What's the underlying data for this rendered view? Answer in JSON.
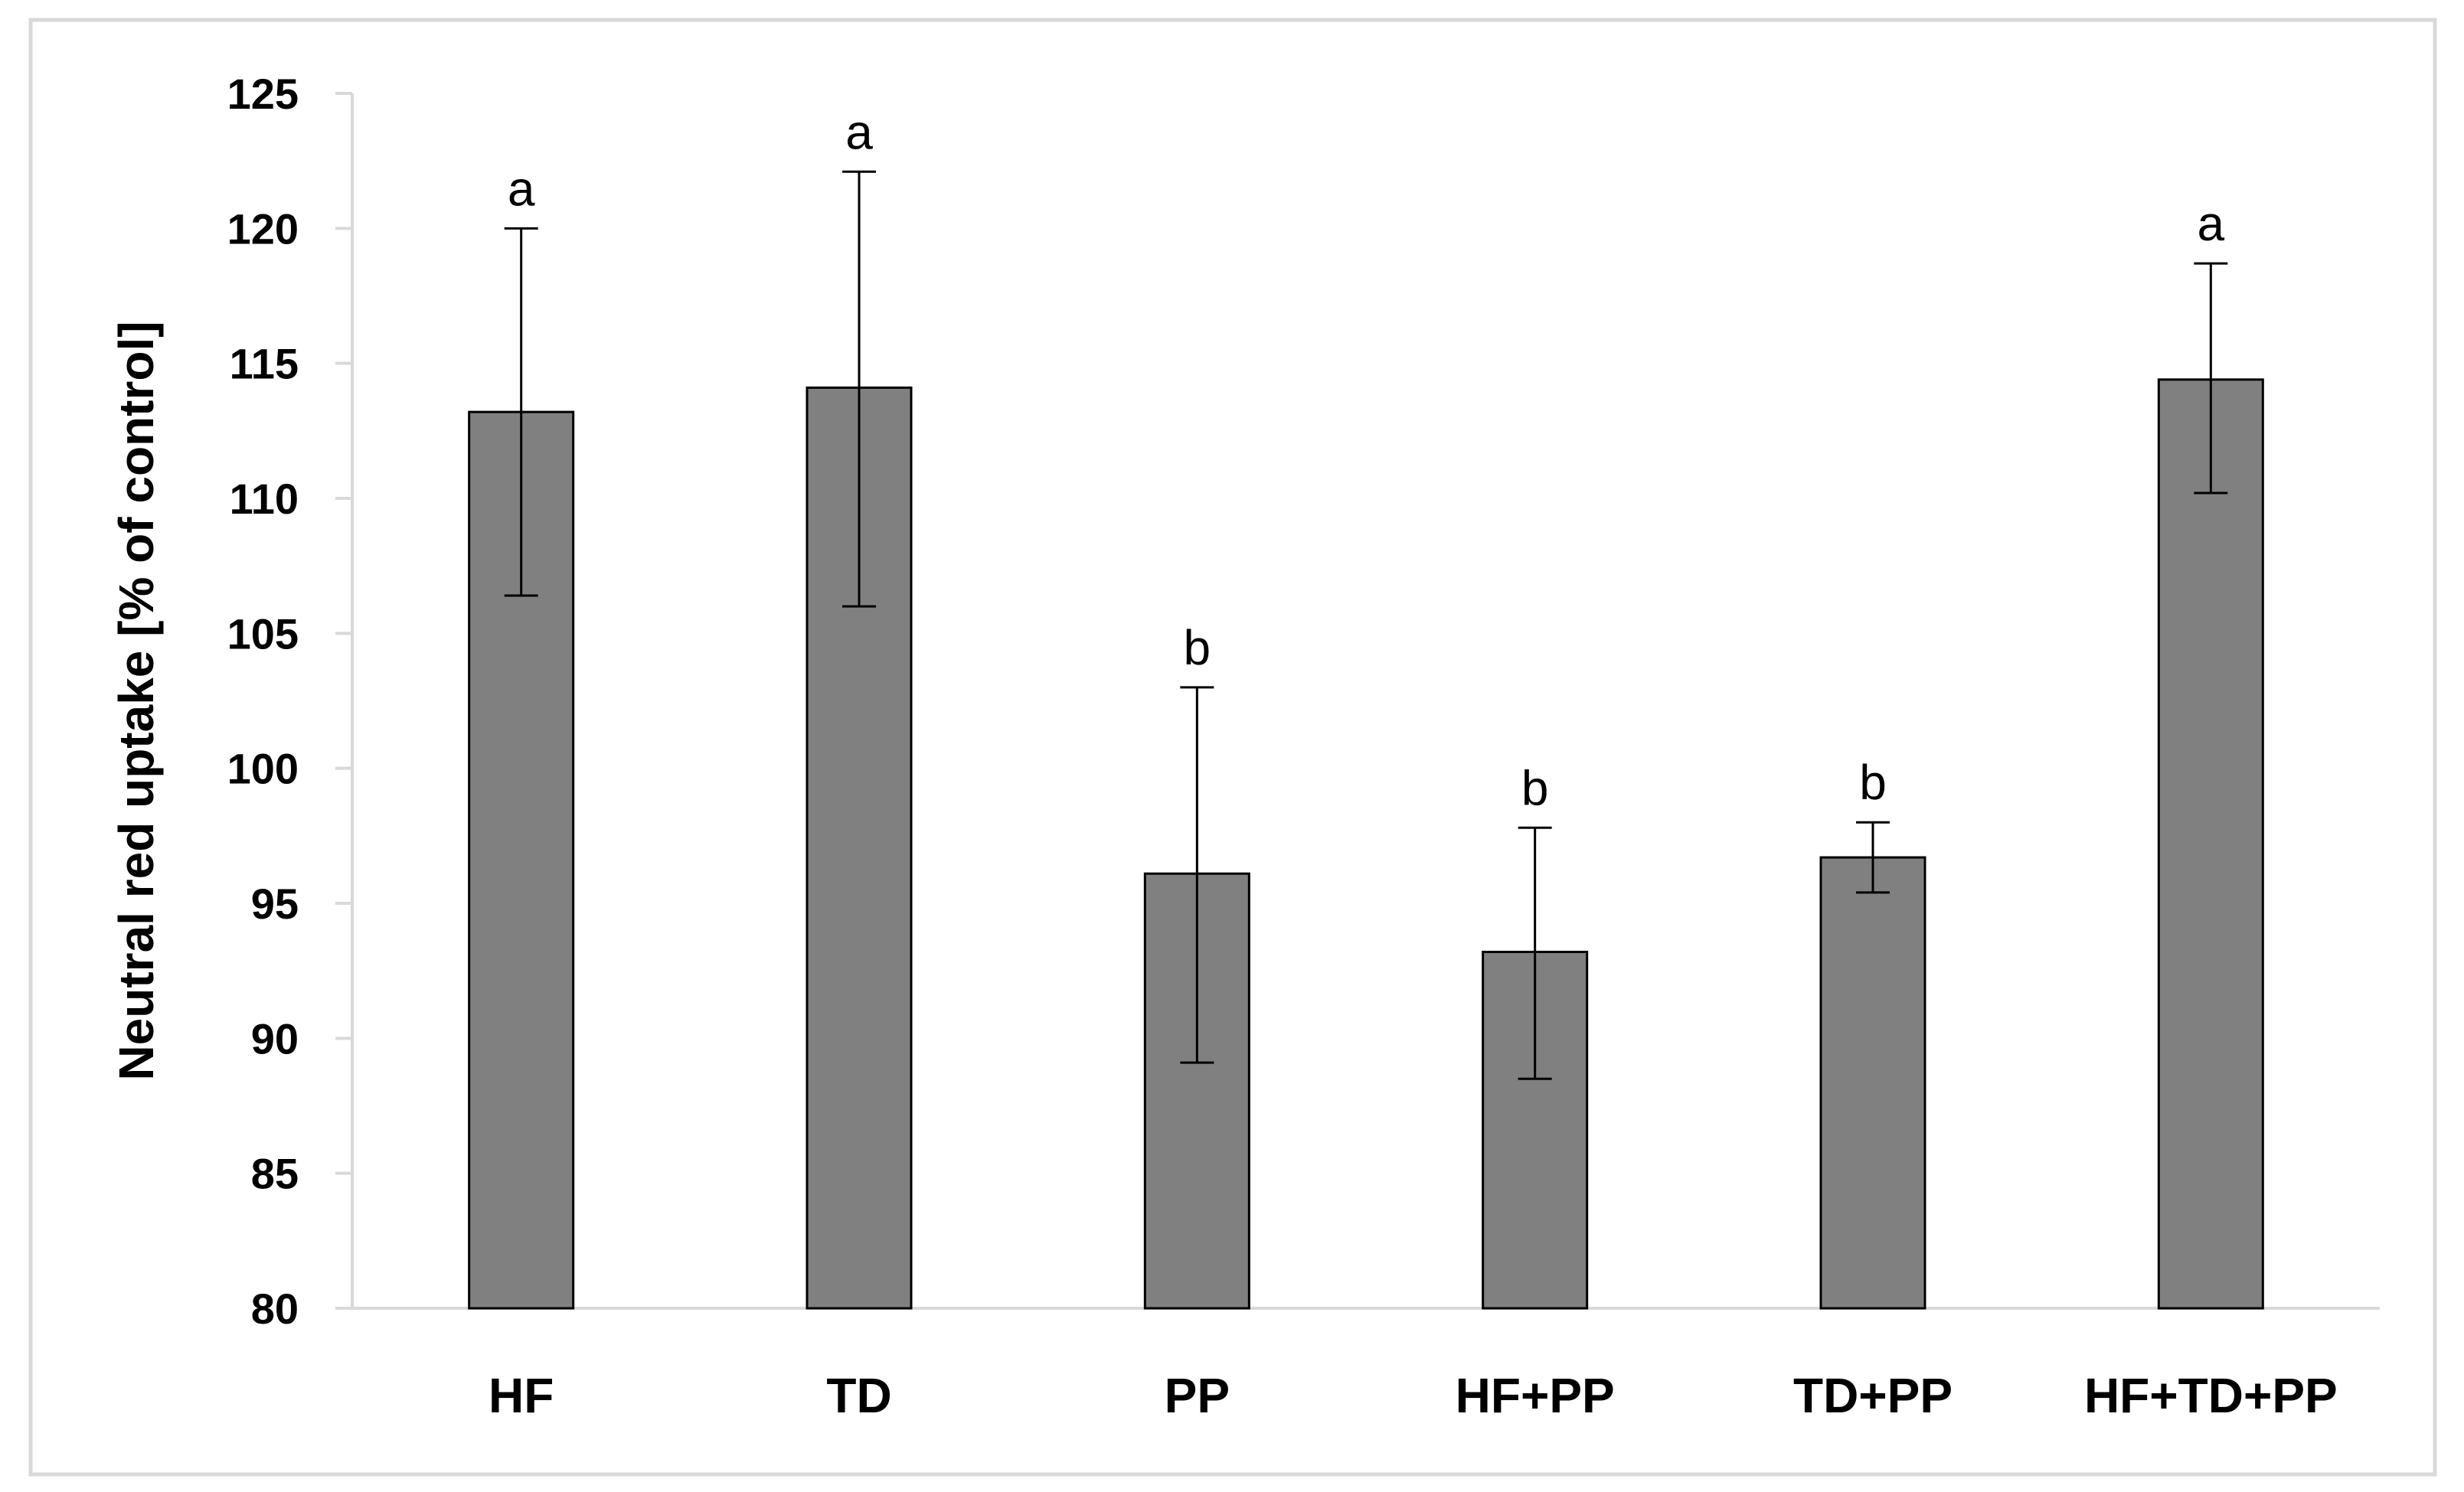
{
  "colors": {
    "bar_fill": "#808080",
    "bar_stroke": "#000000",
    "axis": "#d9d9d9",
    "frame": "#d9d9d9",
    "text": "#000000"
  },
  "chart_data": {
    "type": "bar",
    "title": "",
    "xlabel": "",
    "ylabel": "Neutral red uptake [% of  control]",
    "ylim": [
      80,
      125
    ],
    "yticks": [
      80,
      85,
      90,
      95,
      100,
      105,
      110,
      115,
      120,
      125
    ],
    "grid": false,
    "legend": "none",
    "categories": [
      "HF",
      "TD",
      "PP",
      "HF+PP",
      "TD+PP",
      "HF+TD+PP"
    ],
    "values": [
      113.2,
      114.1,
      96.1,
      93.2,
      96.7,
      114.4
    ],
    "error_low": [
      106.4,
      106.0,
      89.1,
      88.5,
      95.4,
      110.2
    ],
    "error_high": [
      120.0,
      122.1,
      103.0,
      97.8,
      98.0,
      118.7
    ],
    "significance": [
      "a",
      "a",
      "b",
      "b",
      "b",
      "a"
    ]
  }
}
